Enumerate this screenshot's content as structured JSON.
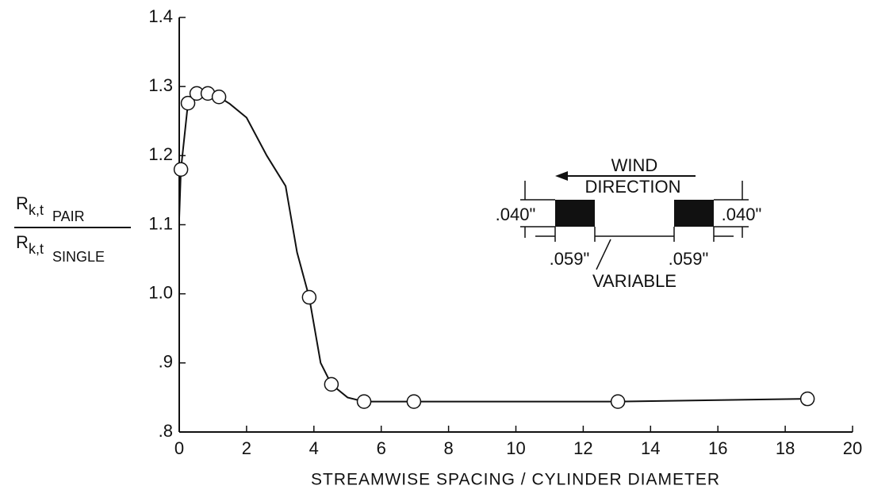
{
  "chart_data": {
    "type": "line",
    "xlabel": "STREAMWISE SPACING / CYLINDER DIAMETER",
    "ylabel": {
      "numerator": [
        "R",
        "k,t",
        "PAIR"
      ],
      "denominator": [
        "R",
        "k,t",
        "SINGLE"
      ]
    },
    "xlim": [
      0,
      20
    ],
    "xticks": [
      0,
      2,
      4,
      6,
      8,
      10,
      12,
      14,
      16,
      18,
      20
    ],
    "ylim": [
      0.8,
      1.4
    ],
    "yticks": [
      {
        "value": 0.8,
        "label": ".8"
      },
      {
        "value": 0.9,
        "label": ".9"
      },
      {
        "value": 1.0,
        "label": "1.0"
      },
      1.1,
      1.2,
      1.3,
      1.4
    ],
    "color": "#111111",
    "curve": {
      "x": [
        0,
        0.05,
        0.26,
        0.52,
        0.85,
        1.18,
        1.5,
        2,
        2.6,
        3.16,
        3.5,
        3.86,
        4.2,
        4.52,
        5,
        5.49,
        6.97,
        13.03,
        18.66
      ],
      "values": [
        1.11,
        1.18,
        1.276,
        1.29,
        1.29,
        1.285,
        1.275,
        1.255,
        1.2,
        1.156,
        1.06,
        0.995,
        0.9,
        0.869,
        0.85,
        0.844,
        0.844,
        0.844,
        0.848
      ]
    },
    "points": {
      "x": [
        0.05,
        0.26,
        0.52,
        0.85,
        1.18,
        3.86,
        4.52,
        5.49,
        6.97,
        13.03,
        18.66
      ],
      "values": [
        1.18,
        1.276,
        1.29,
        1.29,
        1.285,
        0.995,
        0.869,
        0.844,
        0.844,
        0.844,
        0.848
      ]
    },
    "inset": {
      "wind": "WIND",
      "direction": "DIRECTION",
      "height_left": ".040\"",
      "height_right": ".040\"",
      "width_left": ".059\"",
      "width_right": ".059\"",
      "gap": "VARIABLE"
    }
  }
}
